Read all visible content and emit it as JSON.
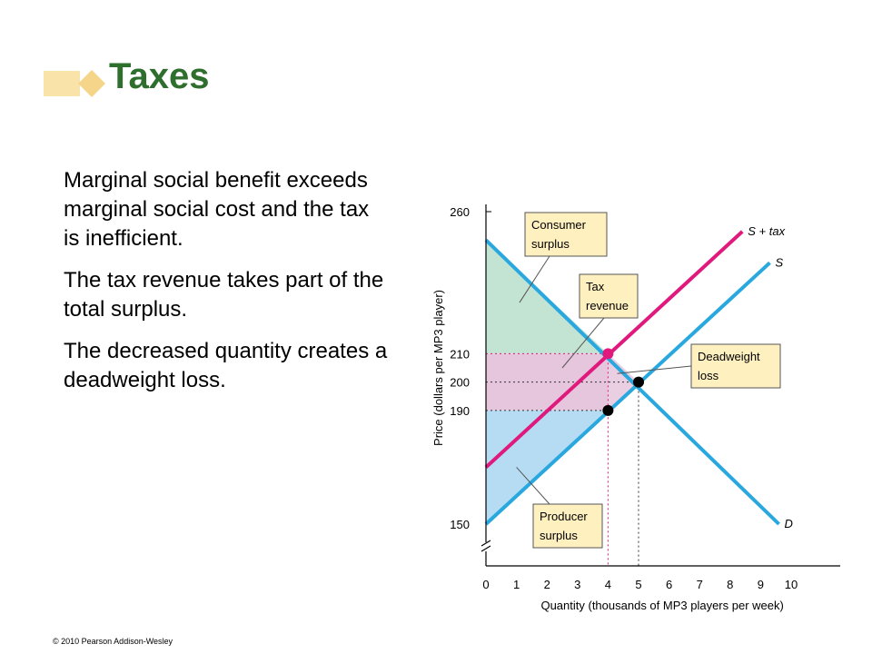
{
  "slide": {
    "title": "Taxes",
    "paragraphs": [
      "Marginal social benefit exceeds marginal social cost and the tax is inefficient.",
      "The tax revenue takes part of the total surplus.",
      "The decreased quantity creates a deadweight loss."
    ],
    "copyright": "© 2010 Pearson Addison-Wesley"
  },
  "colors": {
    "title": "#2e6f2e",
    "supply": "#29a8e0",
    "supply_plus_tax": "#e0197d",
    "consumer_surplus": "#c3e3d3",
    "tax_revenue": "#e6c6dc",
    "producer_surplus": "#b5dcf3",
    "callout_fill": "#fff0c0",
    "deco": "#f5d58a"
  },
  "chart_data": {
    "type": "line",
    "xlabel": "Quantity (thousands of MP3 players per week)",
    "ylabel": "Price (dollars per MP3 player)",
    "xlim": [
      0,
      11.5
    ],
    "ylim": [
      150,
      260
    ],
    "x_ticks": [
      0,
      1,
      2,
      3,
      4,
      5,
      6,
      7,
      8,
      9,
      10
    ],
    "y_ticks": [
      150,
      190,
      200,
      210,
      260
    ],
    "y_axis_break": true,
    "series": [
      {
        "name": "D",
        "x": [
          0,
          9.6
        ],
        "y": [
          250,
          150
        ]
      },
      {
        "name": "S",
        "x": [
          0,
          9.3
        ],
        "y": [
          150,
          242
        ]
      },
      {
        "name": "S + tax",
        "x": [
          0,
          8.4
        ],
        "y": [
          170,
          253
        ]
      }
    ],
    "points": [
      {
        "x": 4,
        "y": 210,
        "color": "#e0197d"
      },
      {
        "x": 5,
        "y": 200,
        "color": "#000000"
      },
      {
        "x": 4,
        "y": 190,
        "color": "#000000"
      }
    ],
    "regions": [
      "Consumer surplus",
      "Tax revenue",
      "Producer surplus",
      "Deadweight loss"
    ],
    "callouts": [
      {
        "text": "Consumer surplus"
      },
      {
        "text": "Tax revenue"
      },
      {
        "text": "Deadweight loss"
      },
      {
        "text": "Producer surplus"
      }
    ]
  }
}
